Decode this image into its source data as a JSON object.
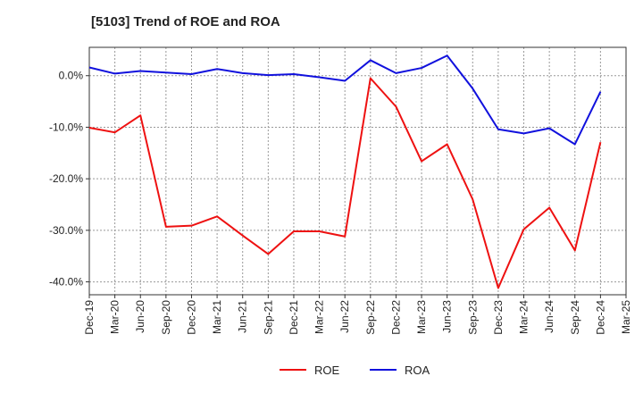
{
  "chart_data": {
    "type": "line",
    "title": "[5103]  Trend of ROE and ROA",
    "xlabel": "",
    "ylabel": "",
    "x_ticks": [
      "Dec-19",
      "Mar-20",
      "Jun-20",
      "Sep-20",
      "Dec-20",
      "Mar-21",
      "Jun-21",
      "Sep-21",
      "Dec-21",
      "Mar-22",
      "Jun-22",
      "Sep-22",
      "Dec-22",
      "Mar-23",
      "Jun-23",
      "Sep-23",
      "Dec-23",
      "Mar-24",
      "Jun-24",
      "Sep-24",
      "Dec-24",
      "Mar-25"
    ],
    "y_ticks": [
      0,
      -10,
      -20,
      -30,
      -40
    ],
    "y_tick_labels": [
      "0.0%",
      "-10.0%",
      "-20.0%",
      "-30.0%",
      "-40.0%"
    ],
    "ylim": [
      -42.5,
      5.5
    ],
    "grid": true,
    "legend_position": "bottom-center",
    "series": [
      {
        "name": "ROE",
        "color": "#ee1111",
        "points": [
          {
            "x": "Dec-19",
            "y": -10.1
          },
          {
            "x": "Mar-20",
            "y": -11.0
          },
          {
            "x": "Jun-20",
            "y": -7.7
          },
          {
            "x": "Sep-20",
            "y": -29.3
          },
          {
            "x": "Dec-20",
            "y": -29.1
          },
          {
            "x": "Mar-21",
            "y": -27.3
          },
          {
            "x": "Jun-21",
            "y": -31.0
          },
          {
            "x": "Sep-21",
            "y": -34.6
          },
          {
            "x": "Dec-21",
            "y": -30.2
          },
          {
            "x": "Mar-22",
            "y": -30.2
          },
          {
            "x": "Jun-22",
            "y": -31.2
          },
          {
            "x": "Sep-22",
            "y": -0.5
          },
          {
            "x": "Dec-22",
            "y": -6.0
          },
          {
            "x": "Mar-23",
            "y": -16.6
          },
          {
            "x": "Jun-23",
            "y": -13.3
          },
          {
            "x": "Sep-23",
            "y": -24.0
          },
          {
            "x": "Dec-23",
            "y": -41.2
          },
          {
            "x": "Mar-24",
            "y": -29.8
          },
          {
            "x": "Jun-24",
            "y": -25.6
          },
          {
            "x": "Sep-24",
            "y": -33.9
          },
          {
            "x": "Dec-24",
            "y": -12.9
          }
        ]
      },
      {
        "name": "ROA",
        "color": "#1111dd",
        "points": [
          {
            "x": "Dec-19",
            "y": 1.6
          },
          {
            "x": "Mar-20",
            "y": 0.4
          },
          {
            "x": "Jun-20",
            "y": 0.9
          },
          {
            "x": "Sep-20",
            "y": 0.6
          },
          {
            "x": "Dec-20",
            "y": 0.3
          },
          {
            "x": "Mar-21",
            "y": 1.3
          },
          {
            "x": "Jun-21",
            "y": 0.5
          },
          {
            "x": "Sep-21",
            "y": 0.1
          },
          {
            "x": "Dec-21",
            "y": 0.3
          },
          {
            "x": "Mar-22",
            "y": -0.3
          },
          {
            "x": "Jun-22",
            "y": -1.0
          },
          {
            "x": "Sep-22",
            "y": 3.0
          },
          {
            "x": "Dec-22",
            "y": 0.5
          },
          {
            "x": "Mar-23",
            "y": 1.5
          },
          {
            "x": "Jun-23",
            "y": 3.9
          },
          {
            "x": "Sep-23",
            "y": -2.5
          },
          {
            "x": "Dec-23",
            "y": -10.4
          },
          {
            "x": "Mar-24",
            "y": -11.2
          },
          {
            "x": "Jun-24",
            "y": -10.2
          },
          {
            "x": "Sep-24",
            "y": -13.3
          },
          {
            "x": "Dec-24",
            "y": -3.1
          }
        ]
      }
    ]
  }
}
